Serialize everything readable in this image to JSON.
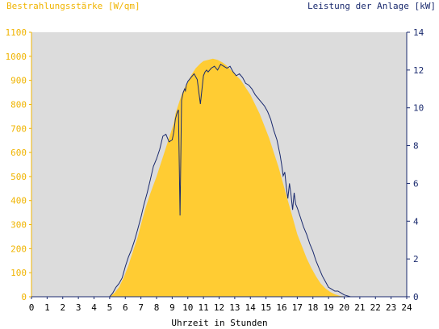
{
  "chart_data": {
    "type": "area",
    "ylabel_left": "Bestrahlungsstärke [W/qm]",
    "ylabel_right": "Leistung der Anlage [kW]",
    "xlabel": "Uhrzeit in Stunden",
    "xlim": [
      0,
      24
    ],
    "ylim_left": [
      0,
      1100
    ],
    "ylim_right": [
      0,
      14
    ],
    "x_ticks": [
      "0",
      "1",
      "2",
      "3",
      "4",
      "5",
      "6",
      "7",
      "8",
      "9",
      "10",
      "11",
      "12",
      "13",
      "14",
      "15",
      "16",
      "17",
      "18",
      "19",
      "20",
      "21",
      "22",
      "23",
      "24"
    ],
    "y_left_ticks": [
      "0",
      "100",
      "200",
      "300",
      "400",
      "500",
      "600",
      "700",
      "800",
      "900",
      "1000",
      "1100"
    ],
    "y_right_ticks": [
      "0",
      "2",
      "4",
      "6",
      "8",
      "10",
      "12",
      "14"
    ],
    "grid": false,
    "colors": {
      "plot_background": "#dcdcdc",
      "irradiance_fill": "#ffcc33",
      "left_axis": "#f0b400",
      "right_axis": "#1a2a6e",
      "power_line": "#1a2a6e"
    },
    "series": [
      {
        "axis": "left",
        "x": [
          0,
          5.0,
          5.3,
          5.6,
          5.9,
          6.2,
          6.5,
          6.8,
          7.0,
          7.3,
          7.6,
          8.0,
          8.3,
          8.6,
          8.9,
          9.1,
          9.2,
          9.4,
          9.6,
          9.8,
          10.0,
          10.2,
          10.5,
          10.8,
          11.0,
          11.3,
          11.6,
          11.9,
          12.2,
          12.5,
          12.8,
          13.1,
          13.4,
          13.7,
          14.0,
          14.3,
          14.6,
          14.9,
          15.2,
          15.5,
          15.8,
          16.1,
          16.4,
          16.7,
          17.0,
          17.3,
          17.6,
          17.9,
          18.2,
          18.5,
          18.8,
          19.1,
          19.4,
          19.7,
          20.0,
          20.3,
          20.6,
          24
        ],
        "values": [
          0,
          0,
          15,
          40,
          80,
          130,
          190,
          250,
          300,
          370,
          430,
          500,
          560,
          620,
          680,
          720,
          760,
          800,
          840,
          870,
          890,
          920,
          950,
          970,
          980,
          985,
          990,
          985,
          975,
          960,
          940,
          920,
          900,
          870,
          840,
          800,
          760,
          710,
          660,
          600,
          540,
          470,
          400,
          330,
          260,
          210,
          160,
          120,
          85,
          55,
          35,
          20,
          10,
          4,
          1,
          0,
          0,
          0
        ]
      },
      {
        "axis": "right",
        "x": [
          0,
          5.0,
          5.2,
          5.4,
          5.6,
          5.8,
          6.0,
          6.2,
          6.4,
          6.6,
          6.8,
          7.0,
          7.2,
          7.4,
          7.6,
          7.8,
          8.0,
          8.2,
          8.4,
          8.6,
          8.8,
          9.0,
          9.1,
          9.2,
          9.3,
          9.4,
          9.5,
          9.6,
          9.7,
          9.75,
          9.8,
          9.85,
          9.9,
          10.0,
          10.2,
          10.4,
          10.6,
          10.8,
          11.0,
          11.1,
          11.2,
          11.3,
          11.5,
          11.7,
          11.9,
          12.1,
          12.3,
          12.5,
          12.7,
          12.9,
          13.1,
          13.3,
          13.5,
          13.7,
          13.9,
          14.1,
          14.3,
          14.5,
          14.7,
          14.9,
          15.1,
          15.3,
          15.5,
          15.7,
          15.9,
          16.0,
          16.1,
          16.2,
          16.3,
          16.4,
          16.5,
          16.6,
          16.7,
          16.8,
          16.9,
          17.0,
          17.2,
          17.4,
          17.6,
          17.8,
          18.0,
          18.2,
          18.4,
          18.6,
          18.8,
          19.0,
          19.2,
          19.4,
          19.6,
          19.8,
          20.0,
          20.2,
          20.4,
          24
        ],
        "values": [
          0,
          0,
          0.2,
          0.5,
          0.7,
          1.0,
          1.6,
          2.1,
          2.5,
          3.0,
          3.6,
          4.2,
          4.9,
          5.5,
          6.2,
          6.9,
          7.3,
          7.8,
          8.5,
          8.6,
          8.2,
          8.3,
          8.7,
          9.4,
          9.7,
          9.9,
          4.3,
          10.4,
          10.8,
          10.9,
          11.0,
          10.9,
          11.2,
          11.4,
          11.6,
          11.8,
          11.5,
          10.2,
          11.7,
          11.9,
          12.0,
          11.9,
          12.1,
          12.2,
          12.0,
          12.3,
          12.2,
          12.1,
          12.2,
          11.9,
          11.7,
          11.8,
          11.6,
          11.3,
          11.2,
          11.0,
          10.7,
          10.5,
          10.3,
          10.1,
          9.8,
          9.4,
          8.8,
          8.3,
          7.5,
          7.0,
          6.4,
          6.6,
          5.8,
          5.2,
          6.0,
          5.4,
          4.6,
          5.5,
          4.9,
          4.7,
          4.2,
          3.7,
          3.3,
          2.8,
          2.4,
          1.9,
          1.5,
          1.1,
          0.8,
          0.5,
          0.4,
          0.3,
          0.3,
          0.2,
          0.1,
          0.05,
          0,
          0
        ]
      }
    ]
  }
}
